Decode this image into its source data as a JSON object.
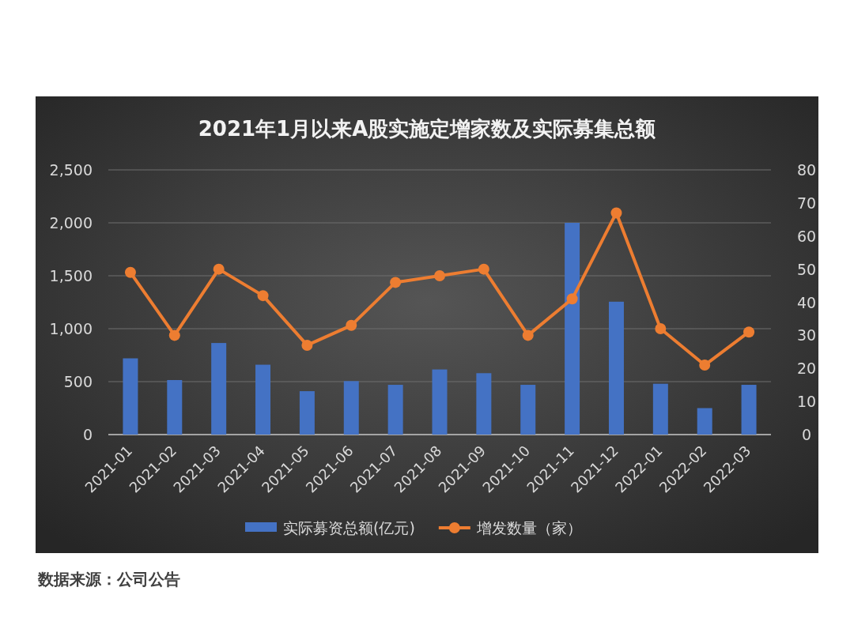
{
  "chart_data": {
    "type": "bar",
    "title": "2021年1月以来A股实施定增家数及实际募集总额",
    "categories": [
      "2021-01",
      "2021-02",
      "2021-03",
      "2021-04",
      "2021-05",
      "2021-06",
      "2021-07",
      "2021-08",
      "2021-09",
      "2021-10",
      "2021-11",
      "2021-12",
      "2022-01",
      "2022-02",
      "2022-03"
    ],
    "series": [
      {
        "name": "实际募资总额(亿元)",
        "color": "#4472c4",
        "values": [
          720,
          515,
          865,
          660,
          410,
          505,
          470,
          615,
          580,
          470,
          2000,
          1255,
          480,
          250,
          470
        ]
      },
      {
        "name": "增发数量（家）",
        "type": "line",
        "axis": "y2",
        "color": "#ed7d31",
        "marker": "circle",
        "values": [
          49,
          30,
          50,
          42,
          27,
          33,
          46,
          48,
          50,
          30,
          41,
          67,
          32,
          21,
          31
        ]
      }
    ],
    "ylim": [
      0,
      2500
    ],
    "yticks": [
      0,
      {
        "value": 500,
        "label": "500"
      },
      {
        "value": 1000,
        "label": "1,000"
      },
      {
        "value": 1500,
        "label": "1,500"
      },
      {
        "value": 2000,
        "label": "2,000"
      },
      {
        "value": 2500,
        "label": "2,500"
      }
    ],
    "y2lim": [
      0,
      80
    ],
    "y2ticks": [
      0,
      10,
      20,
      30,
      40,
      50,
      60,
      70,
      80
    ],
    "grid": "y",
    "legend": "bottom",
    "annotations": [
      "数据来源：公司公告"
    ]
  }
}
